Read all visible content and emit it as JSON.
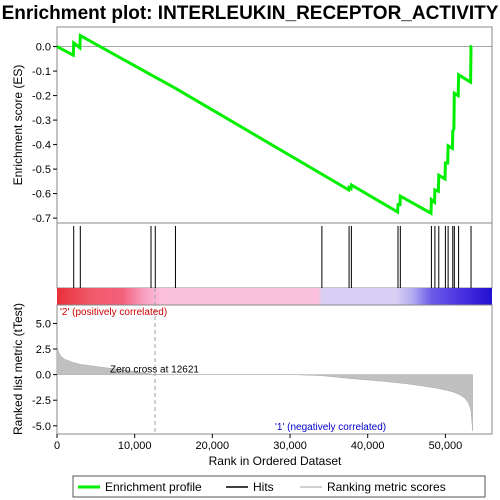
{
  "chart_data": {
    "type": "line",
    "title": "Enrichment plot: INTERLEUKIN_RECEPTOR_ACTIVITY",
    "x_label": "Rank in Ordered Dataset",
    "x_range": [
      0,
      56000
    ],
    "x_ticks": [
      0,
      10000,
      20000,
      30000,
      40000,
      50000
    ],
    "x_tick_labels": [
      "0",
      "10,000",
      "20,000",
      "30,000",
      "40,000",
      "50,000"
    ],
    "n_genes": 53500,
    "es_panel": {
      "y_label": "Enrichment score (ES)",
      "y_range": [
        -0.72,
        0.08
      ],
      "y_ticks": [
        0.0,
        -0.1,
        -0.2,
        -0.3,
        -0.4,
        -0.5,
        -0.6,
        -0.7
      ],
      "y_tick_labels": [
        "0.0",
        "-0.1",
        "-0.2",
        "-0.3",
        "-0.4",
        "-0.5",
        "-0.6",
        "-0.7"
      ],
      "series": [
        {
          "color": "#00ee00",
          "x": [
            0,
            2100,
            2150,
            2950,
            3000,
            12100,
            12650,
            15250,
            37550,
            37600,
            37850,
            37900,
            43850,
            43900,
            44150,
            44200,
            48150,
            48200,
            48600,
            48650,
            49100,
            49150,
            49950,
            50000,
            50300,
            50350,
            50900,
            50950,
            51100,
            51150,
            51650,
            51700,
            53250,
            53300,
            53400
          ],
          "y": [
            0.0,
            -0.035,
            0.015,
            -0.005,
            0.045,
            -0.115,
            -0.125,
            -0.17,
            -0.585,
            -0.575,
            -0.58,
            -0.565,
            -0.675,
            -0.645,
            -0.645,
            -0.61,
            -0.68,
            -0.625,
            -0.635,
            -0.585,
            -0.59,
            -0.525,
            -0.54,
            -0.475,
            -0.475,
            -0.405,
            -0.415,
            -0.345,
            -0.335,
            -0.19,
            -0.2,
            -0.115,
            -0.145,
            0.0,
            0.0
          ]
        }
      ]
    },
    "hits": [
      2150,
      3000,
      12100,
      12650,
      15250,
      34100,
      37600,
      37900,
      43900,
      44200,
      48200,
      48650,
      49150,
      50000,
      50350,
      50950,
      51150,
      51700,
      53300
    ],
    "metric_panel": {
      "y_label": "Ranked list metric (tTest)",
      "y_range": [
        -5.8,
        6.8
      ],
      "y_ticks": [
        5.0,
        2.5,
        0.0,
        -2.5,
        -5.0
      ],
      "y_tick_labels": [
        "5.0",
        "2.5",
        "0.0",
        "-2.5",
        "-5.0"
      ],
      "profile_x": [
        0,
        200,
        500,
        1000,
        2000,
        3000,
        5000,
        8000,
        10000,
        12621,
        20000,
        30000,
        34000,
        38000,
        42000,
        45000,
        47000,
        49000,
        50000,
        51000,
        51800,
        52500,
        53000,
        53300,
        53500
      ],
      "profile_y": [
        3.0,
        2.2,
        1.8,
        1.5,
        1.2,
        1.0,
        0.8,
        0.5,
        0.3,
        0.0,
        0.0,
        0.0,
        -0.1,
        -0.4,
        -0.65,
        -0.9,
        -1.1,
        -1.35,
        -1.5,
        -1.7,
        -1.95,
        -2.3,
        -2.8,
        -3.5,
        -5.5
      ]
    },
    "zero_cross": 12621,
    "annotations": {
      "zero_cross": "Zero cross at 12621",
      "positive": "'2' (positively correlated)",
      "negative": "'1' (negatively correlated)"
    },
    "legend": {
      "placement": "bottom",
      "items": [
        {
          "label": "Enrichment profile",
          "color": "#00ee00",
          "kind": "line"
        },
        {
          "label": "Hits",
          "color": "#000000",
          "kind": "line"
        },
        {
          "label": "Ranking metric scores",
          "color": "#c0c0c0",
          "kind": "line"
        }
      ]
    },
    "colors": {
      "es_line": "#00ee00",
      "hits": "#000000",
      "metric_fill": "#c0c0c0",
      "positive_text": "#cc0000",
      "negative_text": "#0000cc",
      "zero_line": "#c0c0c0"
    }
  }
}
